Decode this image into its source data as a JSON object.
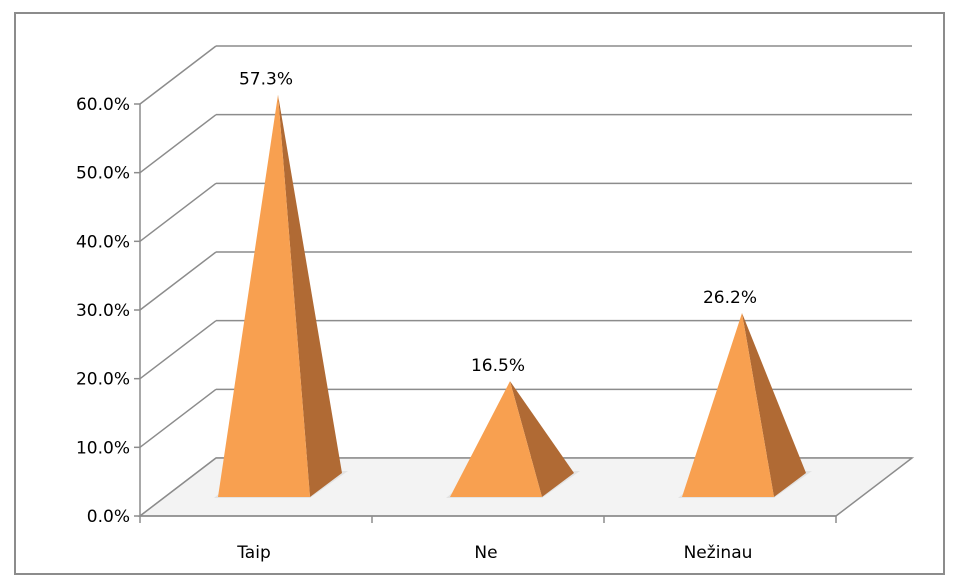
{
  "chart_data": {
    "type": "bar",
    "style": "3d-pyramid",
    "categories": [
      "Taip",
      "Ne",
      "Nežinau"
    ],
    "values": [
      57.3,
      16.5,
      26.2
    ],
    "data_labels": [
      "57.3%",
      "16.5%",
      "26.2%"
    ],
    "title": "",
    "xlabel": "",
    "ylabel": "",
    "ylim": [
      0,
      60
    ],
    "ytick_step": 10,
    "ytick_labels": [
      "0.0%",
      "10.0%",
      "20.0%",
      "30.0%",
      "40.0%",
      "50.0%",
      "60.0%"
    ],
    "grid": true,
    "legend": "none",
    "colors": {
      "front": "#f8a050",
      "side": "#b06a34",
      "grid": "#8c8c8c",
      "floor": "#f3f3f3"
    }
  }
}
